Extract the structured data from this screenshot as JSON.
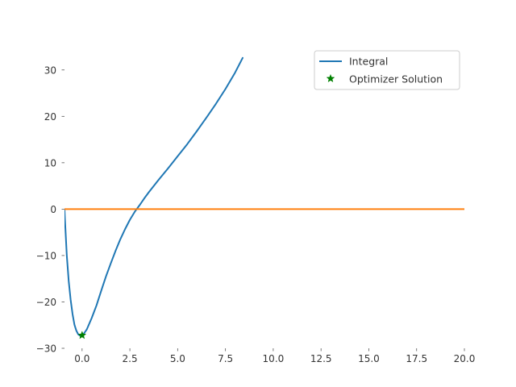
{
  "chart_data": {
    "type": "line",
    "title": "",
    "xlabel": "",
    "ylabel": "",
    "xlim": [
      -0.92,
      20.0
    ],
    "ylim": [
      -30.0,
      35.0
    ],
    "x_ticks": [
      0.0,
      2.5,
      5.0,
      7.5,
      10.0,
      12.5,
      15.0,
      17.5,
      20.0
    ],
    "x_tick_labels": [
      "0.0",
      "2.5",
      "5.0",
      "7.5",
      "10.0",
      "12.5",
      "15.0",
      "17.5",
      "20.0"
    ],
    "y_ticks": [
      -30,
      -20,
      -10,
      0,
      10,
      20,
      30
    ],
    "y_tick_labels": [
      "−30",
      "−20",
      "−10",
      "0",
      "10",
      "20",
      "30"
    ],
    "grid": false,
    "legend_position": "top-right",
    "series": [
      {
        "name": "Integral",
        "color": "#1f77b4",
        "x": [
          -0.92,
          -0.9,
          -0.85,
          -0.8,
          -0.7,
          -0.6,
          -0.5,
          -0.4,
          -0.3,
          -0.2,
          -0.1,
          0.0,
          0.1,
          0.25,
          0.5,
          0.75,
          1.0,
          1.25,
          1.5,
          1.75,
          2.0,
          2.25,
          2.5,
          2.75,
          3.0,
          3.25,
          3.5,
          3.75,
          4.0,
          4.5,
          5.0,
          5.5,
          6.0,
          6.5,
          7.0,
          7.5,
          8.0,
          8.4
        ],
        "y": [
          0.0,
          -2.0,
          -6.0,
          -10.0,
          -15.5,
          -19.5,
          -22.6,
          -24.9,
          -26.2,
          -27.0,
          -27.3,
          -27.2,
          -26.8,
          -25.9,
          -23.5,
          -20.8,
          -17.6,
          -14.5,
          -11.7,
          -9.0,
          -6.5,
          -4.3,
          -2.3,
          -0.6,
          0.8,
          2.3,
          3.7,
          5.0,
          6.3,
          8.8,
          11.4,
          14.0,
          16.8,
          19.7,
          22.7,
          25.9,
          29.4,
          32.6
        ]
      },
      {
        "name": "",
        "color": "#ff7f0e",
        "x": [
          -0.92,
          20.0
        ],
        "y": [
          0.0,
          0.0
        ]
      }
    ],
    "points": [
      {
        "name": "Optimizer Solution",
        "color": "#008000",
        "marker": "star",
        "x": 0.0,
        "y": -27.2
      }
    ],
    "legend": [
      {
        "label": "Integral",
        "kind": "line",
        "color": "#1f77b4"
      },
      {
        "label": "Optimizer Solution",
        "kind": "star",
        "color": "#008000"
      }
    ]
  }
}
